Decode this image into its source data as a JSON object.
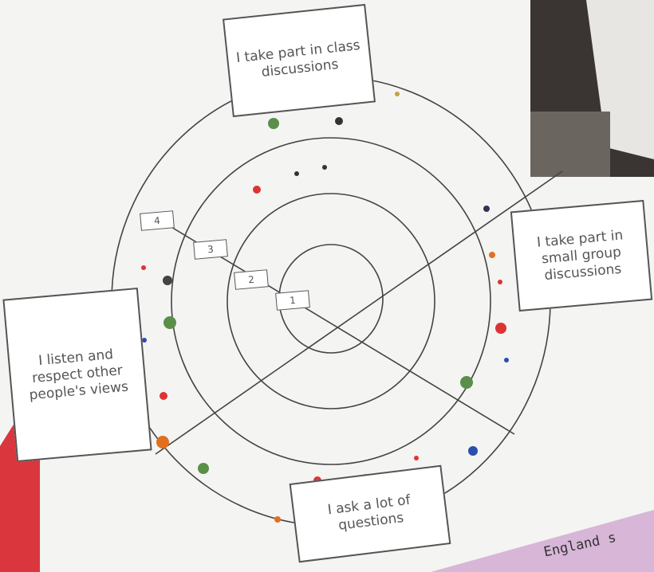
{
  "diagram": {
    "segments": [
      {
        "label": "I take part in class discussions"
      },
      {
        "label": "I take part in small group discussions"
      },
      {
        "label": "I ask a lot of questions"
      },
      {
        "label": "I listen and respect other people's views"
      }
    ],
    "rings": [
      "1",
      "2",
      "3",
      "4"
    ],
    "footer": "England s"
  }
}
